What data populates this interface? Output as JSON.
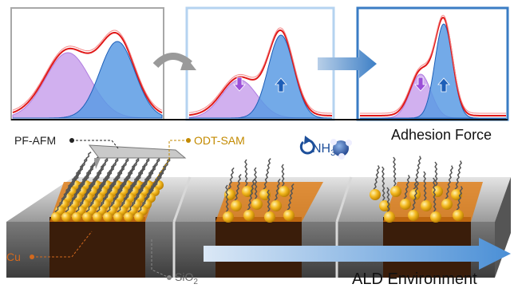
{
  "labels": {
    "pf_afm": "PF-AFM",
    "odt_sam": "ODT-SAM",
    "nh3": {
      "main": "NH",
      "sub": "3"
    },
    "adhesion_force": "Adhesion Force",
    "cu": "Cu",
    "sio2": {
      "main": "SiO",
      "sub": "2"
    },
    "ald_environment": "ALD Environment"
  }
}
